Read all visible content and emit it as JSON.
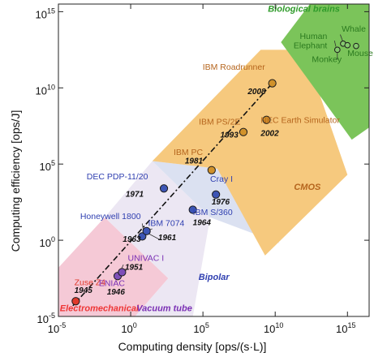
{
  "chart_data": {
    "type": "scatter",
    "xlabel": "Computing density [ops/(s·L)]",
    "ylabel": "Computing efficiency [ops/J]",
    "x_scale": "log",
    "y_scale": "log",
    "xlim_exp": [
      -5,
      16.5
    ],
    "ylim_exp": [
      -5,
      15.5
    ],
    "x_ticks": [
      {
        "base": "10",
        "exp": "-5",
        "v": -5
      },
      {
        "base": "10",
        "exp": "0",
        "v": 0
      },
      {
        "base": "10",
        "exp": "5",
        "v": 5
      },
      {
        "base": "10",
        "exp": "10",
        "v": 10
      },
      {
        "base": "10",
        "exp": "15",
        "v": 15
      }
    ],
    "y_ticks": [
      {
        "base": "10",
        "exp": "-5",
        "v": -5
      },
      {
        "base": "10",
        "exp": "0",
        "v": 0
      },
      {
        "base": "10",
        "exp": "5",
        "v": 5
      },
      {
        "base": "10",
        "exp": "10",
        "v": 10
      },
      {
        "base": "10",
        "exp": "15",
        "v": 15
      }
    ],
    "trend_line": {
      "x": [
        -4.0,
        9.8
      ],
      "y": [
        -4.3,
        10.3
      ]
    },
    "regions": [
      {
        "name": "Electromechanical",
        "color": "#ee3535",
        "fill": "#f5c9d6",
        "polygon": [
          [
            -5,
            -5
          ],
          [
            -5,
            -1.8
          ],
          [
            -1.8,
            1.5
          ],
          [
            2.6,
            -2.5
          ],
          [
            0.3,
            -5
          ]
        ]
      },
      {
        "name": "Vacuum tube",
        "color": "#7a2fb4",
        "fill": "#ece7f3",
        "polygon": [
          [
            -1.8,
            1.5
          ],
          [
            1.5,
            5.2
          ],
          [
            5.5,
            1.5
          ],
          [
            4.3,
            -5
          ],
          [
            0.3,
            -5
          ],
          [
            2.6,
            -2.5
          ]
        ]
      },
      {
        "name": "Bipolar",
        "color": "#2f3fb0",
        "fill": "#dbe1f1",
        "polygon": [
          [
            1.5,
            5.2
          ],
          [
            6.0,
            4.7
          ],
          [
            10.3,
            -0.2
          ],
          [
            5.5,
            1.5
          ]
        ]
      },
      {
        "name": "CMOS",
        "color": "#b5651d",
        "fill": "#f6c97e",
        "polygon": [
          [
            1.5,
            5.2
          ],
          [
            9.0,
            12.5
          ],
          [
            12.0,
            12.5
          ],
          [
            15.0,
            4.3
          ],
          [
            9.3,
            -1.0
          ],
          [
            6.0,
            4.7
          ]
        ]
      },
      {
        "name": "Biological brains",
        "color": "#2f9b2a",
        "fill": "#7bc45a",
        "polygon": [
          [
            10.4,
            13.0
          ],
          [
            12.4,
            15.5
          ],
          [
            16.5,
            15.5
          ],
          [
            16.5,
            7.4
          ],
          [
            15.3,
            6.6
          ]
        ]
      }
    ],
    "region_labels": [
      {
        "text": "Electromechanical",
        "x": -4.9,
        "y": -4.65,
        "color": "#ee3535"
      },
      {
        "text": "Vacuum tube",
        "x": 0.4,
        "y": -4.65,
        "color": "#7a2fb4"
      },
      {
        "text": "Bipolar",
        "x": 4.7,
        "y": -2.6,
        "color": "#2f3fb0"
      },
      {
        "text": "CMOS",
        "x": 11.3,
        "y": 3.3,
        "color": "#b5651d"
      },
      {
        "text": "Biological brains",
        "x": 9.5,
        "y": 15.0,
        "color": "#2f9b2a"
      }
    ],
    "points": [
      {
        "x": -3.8,
        "y": -4.0,
        "color": "#e03a2c"
      },
      {
        "x": -0.9,
        "y": -2.35,
        "color": "#7e4fb8"
      },
      {
        "x": -0.6,
        "y": -2.1,
        "color": "#7e4fb8"
      },
      {
        "x": 0.8,
        "y": 0.25,
        "color": "#3d55b5"
      },
      {
        "x": 1.1,
        "y": 0.6,
        "color": "#3d55b5"
      },
      {
        "x": 2.3,
        "y": 3.4,
        "color": "#3d55b5"
      },
      {
        "x": 4.3,
        "y": 2.0,
        "color": "#3d55b5"
      },
      {
        "x": 5.9,
        "y": 3.0,
        "color": "#3d55b5"
      },
      {
        "x": 5.6,
        "y": 4.6,
        "color": "#d1922b"
      },
      {
        "x": 7.8,
        "y": 7.1,
        "color": "#d1922b"
      },
      {
        "x": 9.4,
        "y": 7.9,
        "color": "#d1922b"
      },
      {
        "x": 9.8,
        "y": 10.3,
        "color": "#d1922b"
      },
      {
        "x": 14.3,
        "y": 12.5,
        "color": "#86c96f"
      },
      {
        "x": 14.7,
        "y": 12.9,
        "color": "#86c96f"
      },
      {
        "x": 15.0,
        "y": 12.8,
        "color": "#86c96f"
      },
      {
        "x": 15.6,
        "y": 12.75,
        "color": "#86c96f"
      }
    ],
    "annotations": [
      {
        "text": "Zuse Z4",
        "x": -3.9,
        "y": -2.95,
        "color": "#e03a2c",
        "style": "normal",
        "anchor": "start"
      },
      {
        "text": "1945",
        "x": -3.9,
        "y": -3.45,
        "color": "#111111",
        "style": "italic",
        "anchor": "start"
      },
      {
        "text": "ENIAC",
        "x": -0.4,
        "y": -3.0,
        "color": "#7a2fb4",
        "style": "normal",
        "anchor": "end"
      },
      {
        "text": "1946",
        "x": -0.4,
        "y": -3.55,
        "color": "#111111",
        "style": "italic",
        "anchor": "end"
      },
      {
        "text": "UNIVAC I",
        "x": -0.2,
        "y": -1.35,
        "color": "#7a2fb4",
        "style": "normal",
        "anchor": "start"
      },
      {
        "text": "1951",
        "x": -0.4,
        "y": -1.95,
        "color": "#111111",
        "style": "italic",
        "anchor": "start"
      },
      {
        "text": "Honeywell 1800",
        "x": 0.7,
        "y": 1.4,
        "color": "#2f3fb0",
        "style": "normal",
        "anchor": "end"
      },
      {
        "text": "1963",
        "x": 0.7,
        "y": -0.1,
        "color": "#111111",
        "style": "italic",
        "anchor": "end"
      },
      {
        "text": "IBM 7074",
        "x": 1.2,
        "y": 0.95,
        "color": "#2f3fb0",
        "style": "normal",
        "anchor": "start"
      },
      {
        "text": "1961",
        "x": 1.9,
        "y": 0.0,
        "color": "#111111",
        "style": "italic",
        "anchor": "start"
      },
      {
        "text": "DEC PDP-11/20",
        "x": 1.2,
        "y": 4.0,
        "color": "#2f3fb0",
        "style": "normal",
        "anchor": "end"
      },
      {
        "text": "1971",
        "x": 0.9,
        "y": 2.85,
        "color": "#111111",
        "style": "italic",
        "anchor": "end"
      },
      {
        "text": "IBM S/360",
        "x": 4.3,
        "y": 1.65,
        "color": "#2f3fb0",
        "style": "normal",
        "anchor": "start"
      },
      {
        "text": "1964",
        "x": 4.3,
        "y": 1.0,
        "color": "#111111",
        "style": "italic",
        "anchor": "start"
      },
      {
        "text": "Cray I",
        "x": 5.5,
        "y": 3.85,
        "color": "#2f3fb0",
        "style": "normal",
        "anchor": "start"
      },
      {
        "text": "1976",
        "x": 5.6,
        "y": 2.35,
        "color": "#111111",
        "style": "italic",
        "anchor": "start"
      },
      {
        "text": "IBM PC",
        "x": 5.0,
        "y": 5.6,
        "color": "#b5651d",
        "style": "normal",
        "anchor": "end"
      },
      {
        "text": "1981",
        "x": 5.0,
        "y": 5.05,
        "color": "#111111",
        "style": "italic",
        "anchor": "end"
      },
      {
        "text": "IBM PS/2E",
        "x": 7.6,
        "y": 7.6,
        "color": "#b5651d",
        "style": "normal",
        "anchor": "end"
      },
      {
        "text": "1993",
        "x": 7.45,
        "y": 6.75,
        "color": "#111111",
        "style": "italic",
        "anchor": "end"
      },
      {
        "text": "NEC Earth Simulator",
        "x": 9.0,
        "y": 7.7,
        "color": "#b5651d",
        "style": "normal",
        "anchor": "start"
      },
      {
        "text": "2002",
        "x": 9.0,
        "y": 6.85,
        "color": "#111111",
        "style": "italic",
        "anchor": "start"
      },
      {
        "text": "IBM Roadrunner",
        "x": 9.3,
        "y": 11.2,
        "color": "#b5651d",
        "style": "normal",
        "anchor": "end"
      },
      {
        "text": "2008",
        "x": 9.35,
        "y": 9.6,
        "color": "#111111",
        "style": "italic",
        "anchor": "end"
      },
      {
        "text": "Human",
        "x": 13.6,
        "y": 13.2,
        "color": "#2b7a1f",
        "style": "normal",
        "anchor": "end"
      },
      {
        "text": "Elephant",
        "x": 13.6,
        "y": 12.6,
        "color": "#2b7a1f",
        "style": "normal",
        "anchor": "end"
      },
      {
        "text": "Whale",
        "x": 14.6,
        "y": 13.7,
        "color": "#2b7a1f",
        "style": "normal",
        "anchor": "start"
      },
      {
        "text": "Monkey",
        "x": 14.6,
        "y": 11.7,
        "color": "#2b7a1f",
        "style": "normal",
        "anchor": "end"
      },
      {
        "text": "Mouse",
        "x": 15.0,
        "y": 12.1,
        "color": "#2b7a1f",
        "style": "normal",
        "anchor": "start"
      }
    ],
    "callouts": [
      [
        -0.5,
        -1.6,
        -0.7,
        -2.0
      ],
      [
        0.8,
        1.1,
        0.9,
        0.5
      ],
      [
        1.5,
        0.75,
        1.15,
        0.65
      ],
      [
        2.0,
        0.05,
        1.2,
        0.45
      ],
      [
        -0.3,
        -1.95,
        -0.6,
        -2.1
      ],
      [
        14.1,
        13.1,
        14.2,
        12.7
      ],
      [
        14.1,
        12.5,
        14.2,
        12.6
      ],
      [
        14.5,
        13.5,
        14.7,
        13.0
      ],
      [
        14.3,
        11.85,
        14.3,
        12.3
      ]
    ]
  }
}
